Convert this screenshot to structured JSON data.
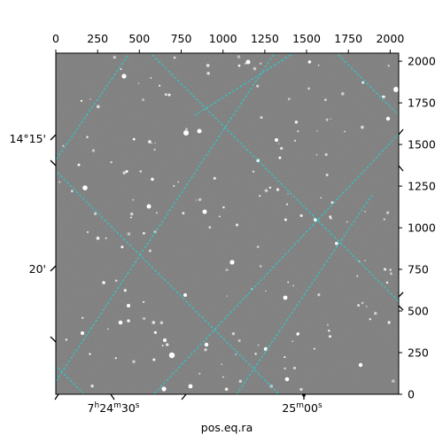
{
  "chart_data": {
    "type": "image",
    "xlabel": "pos.eq.ra",
    "ylabel": "",
    "xlim": [
      0,
      2048
    ],
    "ylim": [
      0,
      2048
    ],
    "top_ticks": [
      {
        "value": 0,
        "label": "0"
      },
      {
        "value": 250,
        "label": "250"
      },
      {
        "value": 500,
        "label": "500"
      },
      {
        "value": 750,
        "label": "750"
      },
      {
        "value": 1000,
        "label": "1000"
      },
      {
        "value": 1250,
        "label": "1250"
      },
      {
        "value": 1500,
        "label": "1500"
      },
      {
        "value": 1750,
        "label": "1750"
      },
      {
        "value": 2000,
        "label": "2000"
      }
    ],
    "right_ticks": [
      {
        "value": 0,
        "label": "0"
      },
      {
        "value": 250,
        "label": "250"
      },
      {
        "value": 500,
        "label": "500"
      },
      {
        "value": 750,
        "label": "750"
      },
      {
        "value": 1000,
        "label": "1000"
      },
      {
        "value": 1250,
        "label": "1250"
      },
      {
        "value": 1500,
        "label": "1500"
      },
      {
        "value": 1750,
        "label": "1750"
      },
      {
        "value": 2000,
        "label": "2000"
      }
    ],
    "ra_ticks": [
      {
        "label": "7h24m30s",
        "h": "7",
        "m": "24",
        "s": "30"
      },
      {
        "label": "25m00s",
        "h": "",
        "m": "25",
        "s": "00"
      }
    ],
    "dec_ticks": [
      {
        "label": "14°15'"
      },
      {
        "label": "20'"
      }
    ],
    "grid": true,
    "grid_color": "#22d3d3",
    "image": "grayscale star field"
  }
}
